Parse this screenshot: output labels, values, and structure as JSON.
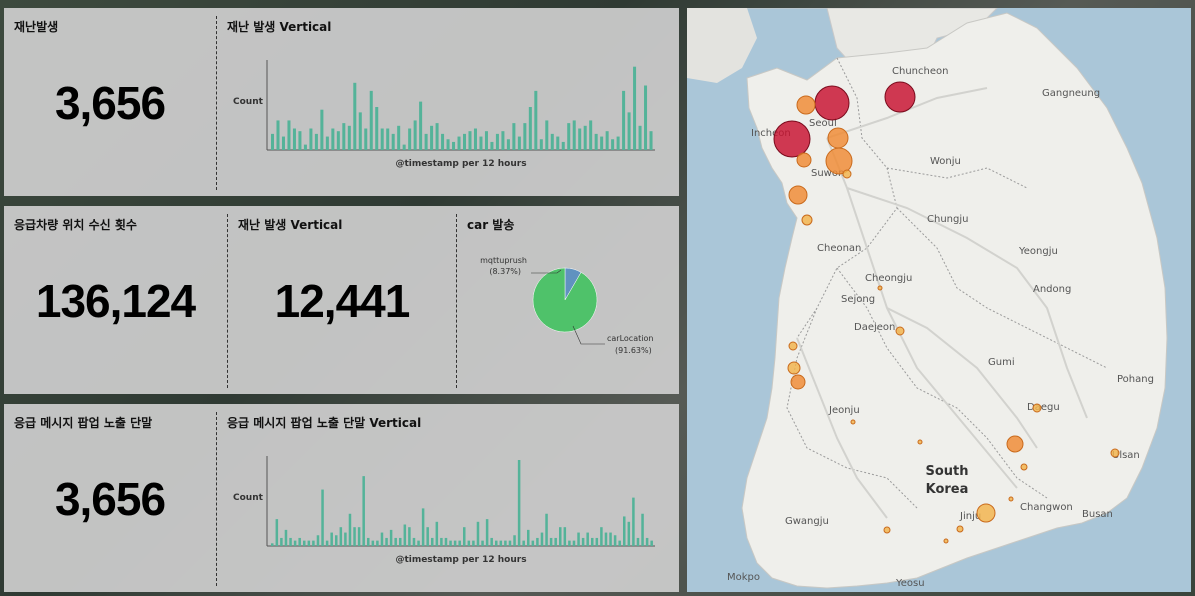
{
  "row1": {
    "metric_title": "재난발생",
    "metric_value": "3,656",
    "chart_title": "재난 발생 Vertical"
  },
  "row2": {
    "metric_title": "응급차량 위치 수신 횟수",
    "metric_value": "136,124",
    "metric2_title": "재난 발생 Vertical",
    "metric2_value": "12,441",
    "pie_title": "car 발송"
  },
  "row3": {
    "metric_title": "응급 메시지 팝업 노출 단말",
    "metric_value": "3,656",
    "chart_title": "응급 메시지 팝업 노출 단말 Vertical"
  },
  "map": {
    "country_line1": "South",
    "country_line2": "Korea",
    "cities": [
      "Chuncheon",
      "Gangneung",
      "Seoul",
      "Incheon",
      "Suwon",
      "Wonju",
      "Chungju",
      "Cheonan",
      "Yeongju",
      "Cheongju",
      "Sejong",
      "Andong",
      "Daejeon",
      "Gumi",
      "Pohang",
      "Jeonju",
      "Daegu",
      "Ulsan",
      "Changwon",
      "Busan",
      "Jinju",
      "Gwangju",
      "Mokpo",
      "Yeosu"
    ]
  },
  "chart_data": [
    {
      "type": "bar",
      "title": "재난 발생 Vertical",
      "xlabel": "@timestamp per 12 hours",
      "ylabel": "Count",
      "ylim": [
        0,
        32
      ],
      "values": [
        6,
        11,
        5,
        11,
        8,
        7,
        2,
        8,
        6,
        15,
        5,
        8,
        7,
        10,
        9,
        25,
        14,
        8,
        22,
        16,
        8,
        8,
        6,
        9,
        2,
        8,
        11,
        18,
        6,
        9,
        10,
        6,
        4,
        3,
        5,
        6,
        7,
        8,
        5,
        7,
        3,
        6,
        7,
        4,
        10,
        5,
        10,
        16,
        22,
        4,
        11,
        6,
        5,
        3,
        10,
        11,
        8,
        9,
        11,
        6,
        5,
        7,
        4,
        5,
        22,
        14,
        31,
        9,
        24,
        7
      ],
      "color": "#54b399"
    },
    {
      "type": "pie",
      "title": "car 발송",
      "categories": [
        "mqttuprush",
        "carLocation"
      ],
      "values": [
        8.37,
        91.63
      ],
      "colors": [
        "#6092c0",
        "#4fc26a"
      ]
    },
    {
      "type": "bar",
      "title": "응급 메시지 팝업 노출 단말 Vertical",
      "xlabel": "@timestamp per 12 hours",
      "ylabel": "Count",
      "ylim": [
        0,
        32
      ],
      "values": [
        1,
        10,
        3,
        6,
        3,
        2,
        3,
        2,
        2,
        2,
        4,
        21,
        2,
        5,
        4,
        7,
        5,
        12,
        7,
        7,
        26,
        3,
        2,
        2,
        5,
        3,
        6,
        3,
        3,
        8,
        7,
        3,
        2,
        14,
        7,
        3,
        9,
        3,
        3,
        2,
        2,
        2,
        7,
        2,
        2,
        9,
        2,
        10,
        3,
        2,
        2,
        2,
        2,
        4,
        32,
        2,
        6,
        2,
        3,
        5,
        12,
        3,
        3,
        7,
        7,
        2,
        2,
        5,
        3,
        5,
        3,
        3,
        7,
        5,
        5,
        4,
        2,
        11,
        9,
        18,
        3,
        12,
        3,
        2
      ],
      "color": "#54b399"
    }
  ],
  "map_points": {
    "colors": {
      "high": "#c8102e",
      "mid": "#f08a32",
      "low": "#f3b34a"
    }
  }
}
